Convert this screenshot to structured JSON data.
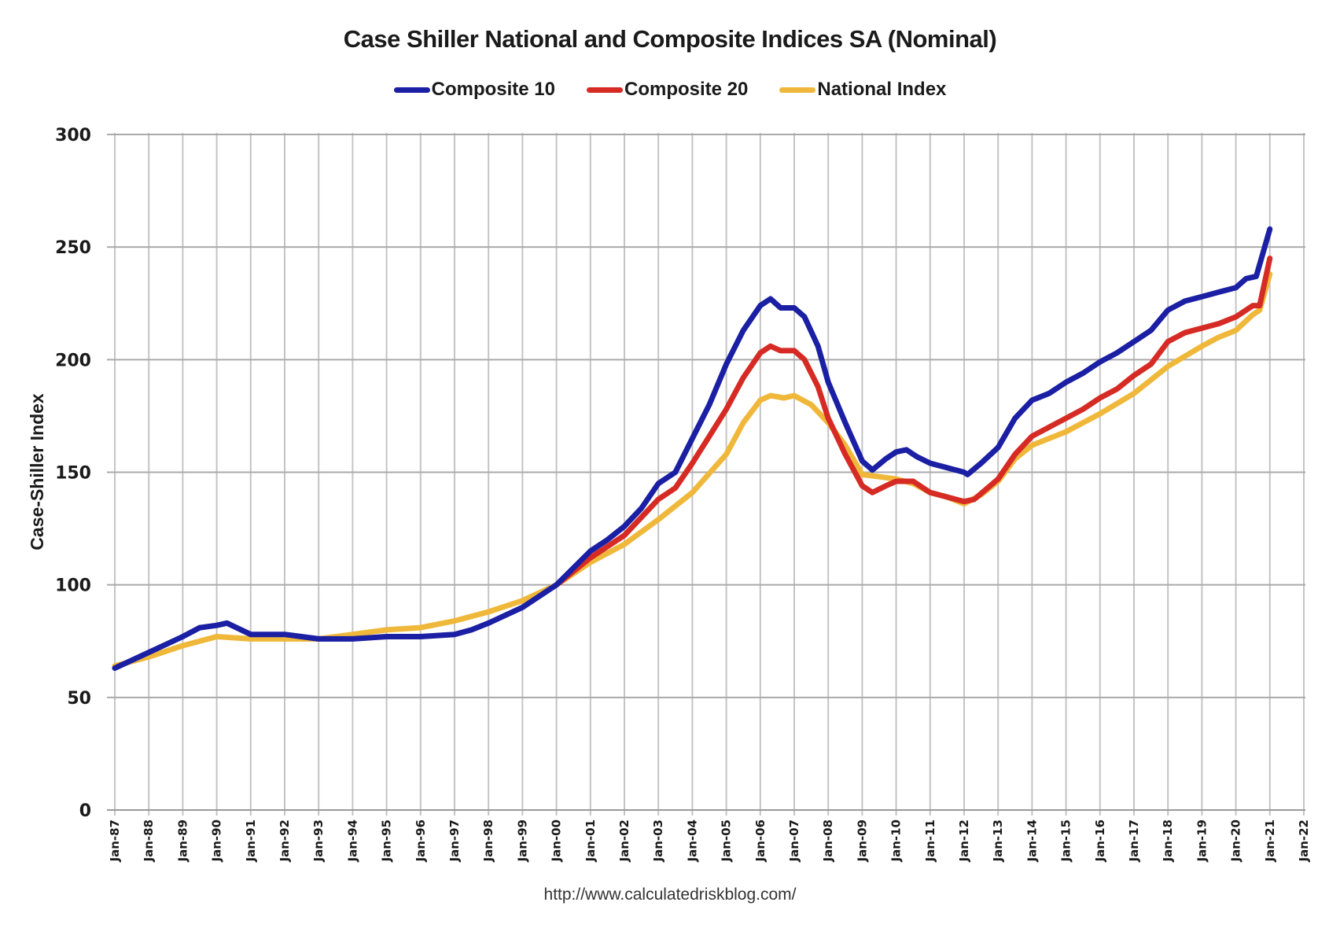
{
  "chart_data": {
    "type": "line",
    "title": "Case Shiller National and Composite Indices SA (Nominal)",
    "xlabel": "",
    "ylabel": "Case-Shiller Index",
    "source": "http://www.calculatedriskblog.com/",
    "ylim": [
      0,
      300
    ],
    "yticks": [
      0,
      50,
      100,
      150,
      200,
      250,
      300
    ],
    "xlim": [
      1987,
      2022
    ],
    "xtick_labels": [
      "Jan-87",
      "Jan-88",
      "Jan-89",
      "Jan-90",
      "Jan-91",
      "Jan-92",
      "Jan-93",
      "Jan-94",
      "Jan-95",
      "Jan-96",
      "Jan-97",
      "Jan-98",
      "Jan-99",
      "Jan-00",
      "Jan-01",
      "Jan-02",
      "Jan-03",
      "Jan-04",
      "Jan-05",
      "Jan-06",
      "Jan-07",
      "Jan-08",
      "Jan-09",
      "Jan-10",
      "Jan-11",
      "Jan-12",
      "Jan-13",
      "Jan-14",
      "Jan-15",
      "Jan-16",
      "Jan-17",
      "Jan-18",
      "Jan-19",
      "Jan-20",
      "Jan-21",
      "Jan-22"
    ],
    "grid": true,
    "legend_position": "top-center",
    "series": [
      {
        "name": "Composite 10",
        "color": "#1a1fa3",
        "x": [
          1987,
          1988,
          1989,
          1989.5,
          1990,
          1990.3,
          1991,
          1991.5,
          1992,
          1993,
          1994,
          1995,
          1996,
          1997,
          1997.5,
          1998,
          1999,
          2000,
          2001,
          2001.5,
          2002,
          2002.5,
          2003,
          2003.5,
          2004,
          2004.5,
          2005,
          2005.5,
          2006,
          2006.3,
          2006.6,
          2007,
          2007.3,
          2007.7,
          2008,
          2008.5,
          2009,
          2009.3,
          2009.7,
          2010,
          2010.3,
          2010.6,
          2011,
          2011.5,
          2012,
          2012.1,
          2012.5,
          2013,
          2013.5,
          2014,
          2014.5,
          2015,
          2015.5,
          2016,
          2016.5,
          2017,
          2017.5,
          2018,
          2018.5,
          2019,
          2019.5,
          2020,
          2020.3,
          2020.6,
          2021
        ],
        "values": [
          63,
          70,
          77,
          81,
          82,
          83,
          78,
          78,
          78,
          76,
          76,
          77,
          77,
          78,
          80,
          83,
          90,
          100,
          115,
          120,
          126,
          134,
          145,
          150,
          165,
          180,
          198,
          213,
          224,
          227,
          223,
          223,
          219,
          206,
          190,
          172,
          155,
          151,
          156,
          159,
          160,
          157,
          154,
          152,
          150,
          149,
          154,
          161,
          174,
          182,
          185,
          190,
          194,
          199,
          203,
          208,
          213,
          222,
          226,
          228,
          230,
          232,
          236,
          237,
          258
        ]
      },
      {
        "name": "Composite 20",
        "color": "#d62b24",
        "x": [
          2000,
          2001,
          2001.5,
          2002,
          2002.5,
          2003,
          2003.5,
          2004,
          2004.5,
          2005,
          2005.5,
          2006,
          2006.3,
          2006.6,
          2007,
          2007.3,
          2007.7,
          2008,
          2008.5,
          2009,
          2009.3,
          2009.7,
          2010,
          2010.5,
          2011,
          2011.5,
          2012,
          2012.3,
          2013,
          2013.5,
          2014,
          2014.5,
          2015,
          2015.5,
          2016,
          2016.5,
          2017,
          2017.5,
          2018,
          2018.5,
          2019,
          2019.5,
          2020,
          2020.5,
          2020.7,
          2021
        ],
        "values": [
          100,
          112,
          117,
          122,
          130,
          138,
          143,
          154,
          166,
          178,
          192,
          203,
          206,
          204,
          204,
          200,
          188,
          174,
          158,
          144,
          141,
          144,
          146,
          146,
          141,
          139,
          137,
          138,
          147,
          158,
          166,
          170,
          174,
          178,
          183,
          187,
          193,
          198,
          208,
          212,
          214,
          216,
          219,
          224,
          224,
          245
        ]
      },
      {
        "name": "National Index",
        "color": "#f0b83a",
        "x": [
          1987,
          1988,
          1989,
          1990,
          1991,
          1992,
          1993,
          1994,
          1995,
          1996,
          1997,
          1998,
          1999,
          2000,
          2001,
          2002,
          2003,
          2004,
          2005,
          2005.5,
          2006,
          2006.3,
          2006.7,
          2007,
          2007.5,
          2008,
          2008.5,
          2009,
          2009.5,
          2010,
          2010.5,
          2011,
          2011.5,
          2012,
          2012.5,
          2013,
          2013.5,
          2014,
          2015,
          2016,
          2017,
          2018,
          2019,
          2019.5,
          2020,
          2020.5,
          2020.7,
          2021
        ],
        "values": [
          64,
          68,
          73,
          77,
          76,
          76,
          76,
          78,
          80,
          81,
          84,
          88,
          93,
          100,
          110,
          118,
          129,
          141,
          158,
          172,
          182,
          184,
          183,
          184,
          180,
          172,
          162,
          149,
          148,
          147,
          145,
          141,
          139,
          136,
          140,
          146,
          156,
          162,
          168,
          176,
          185,
          197,
          206,
          210,
          213,
          220,
          222,
          238
        ]
      }
    ]
  }
}
